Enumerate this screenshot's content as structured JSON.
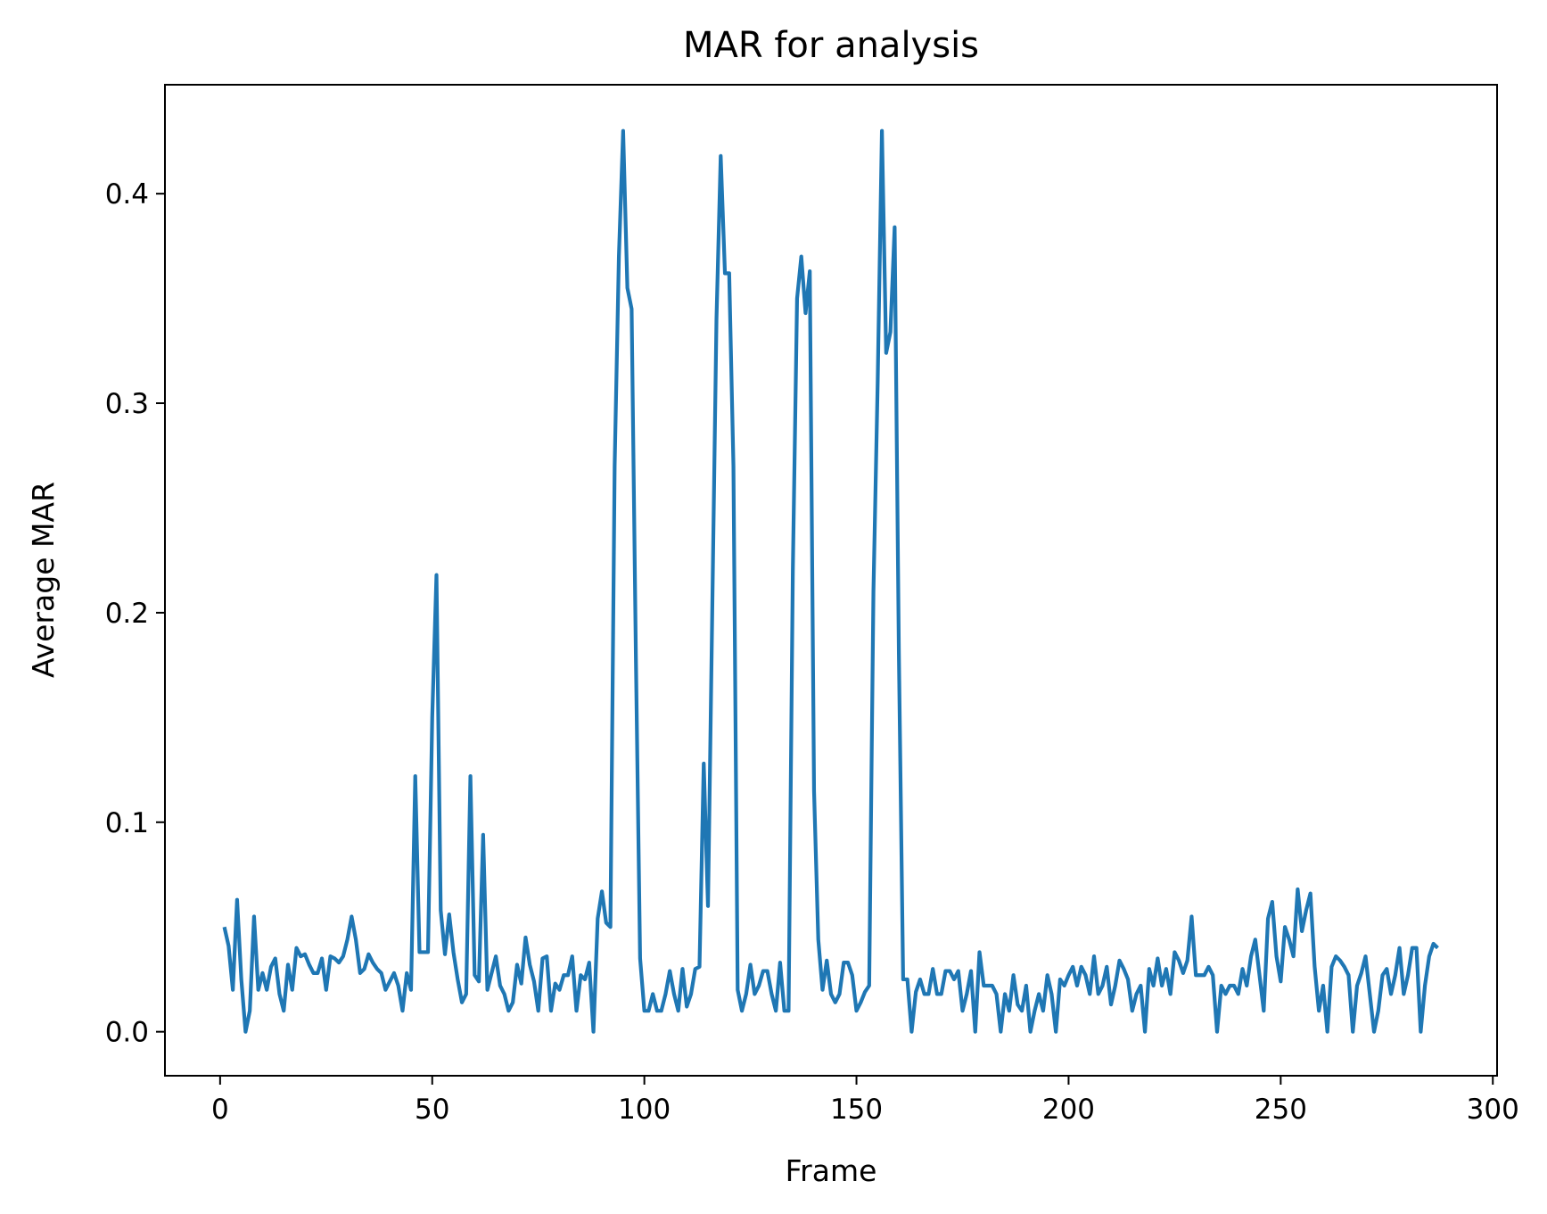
{
  "chart_data": {
    "type": "line",
    "title": "MAR for analysis",
    "xlabel": "Frame",
    "ylabel": "Average MAR",
    "xlim": [
      -13,
      301
    ],
    "ylim": [
      -0.021,
      0.452
    ],
    "xticks": [
      0,
      50,
      100,
      150,
      200,
      250,
      300
    ],
    "xtick_labels": [
      "0",
      "50",
      "100",
      "150",
      "200",
      "250",
      "300"
    ],
    "yticks": [
      0.0,
      0.1,
      0.2,
      0.3,
      0.4
    ],
    "ytick_labels": [
      "0.0",
      "0.1",
      "0.2",
      "0.3",
      "0.4"
    ],
    "grid": false,
    "legend": "none",
    "series": [
      {
        "color": "#1f77b4",
        "x": [
          1,
          2,
          3,
          4,
          5,
          6,
          7,
          8,
          9,
          10,
          11,
          12,
          13,
          14,
          15,
          16,
          17,
          18,
          19,
          20,
          21,
          22,
          23,
          24,
          25,
          26,
          27,
          28,
          29,
          30,
          31,
          32,
          33,
          34,
          35,
          36,
          37,
          38,
          39,
          40,
          41,
          42,
          43,
          44,
          45,
          46,
          47,
          48,
          49,
          50,
          51,
          52,
          53,
          54,
          55,
          56,
          57,
          58,
          59,
          60,
          61,
          62,
          63,
          64,
          65,
          66,
          67,
          68,
          69,
          70,
          71,
          72,
          73,
          74,
          75,
          76,
          77,
          78,
          79,
          80,
          81,
          82,
          83,
          84,
          85,
          86,
          87,
          88,
          89,
          90,
          91,
          92,
          93,
          94,
          95,
          96,
          97,
          98,
          99,
          100,
          101,
          102,
          103,
          104,
          105,
          106,
          107,
          108,
          109,
          110,
          111,
          112,
          113,
          114,
          115,
          116,
          117,
          118,
          119,
          120,
          121,
          122,
          123,
          124,
          125,
          126,
          127,
          128,
          129,
          130,
          131,
          132,
          133,
          134,
          135,
          136,
          137,
          138,
          139,
          140,
          141,
          142,
          143,
          144,
          145,
          146,
          147,
          148,
          149,
          150,
          151,
          152,
          153,
          154,
          155,
          156,
          157,
          158,
          159,
          160,
          161,
          162,
          163,
          164,
          165,
          166,
          167,
          168,
          169,
          170,
          171,
          172,
          173,
          174,
          175,
          176,
          177,
          178,
          179,
          180,
          181,
          182,
          183,
          184,
          185,
          186,
          187,
          188,
          189,
          190,
          191,
          192,
          193,
          194,
          195,
          196,
          197,
          198,
          199,
          200,
          201,
          202,
          203,
          204,
          205,
          206,
          207,
          208,
          209,
          210,
          211,
          212,
          213,
          214,
          215,
          216,
          217,
          218,
          219,
          220,
          221,
          222,
          223,
          224,
          225,
          226,
          227,
          228,
          229,
          230,
          231,
          232,
          233,
          234,
          235,
          236,
          237,
          238,
          239,
          240,
          241,
          242,
          243,
          244,
          245,
          246,
          247,
          248,
          249,
          250,
          251,
          252,
          253,
          254,
          255,
          256,
          257,
          258,
          259,
          260,
          261,
          262,
          263,
          264,
          265,
          266,
          267,
          268,
          269,
          270,
          271,
          272,
          273,
          274,
          275,
          276,
          277,
          278,
          279,
          280,
          281,
          282,
          283,
          284,
          285,
          286,
          287
        ],
        "y": [
          0.05,
          0.041,
          0.02,
          0.063,
          0.025,
          0.0,
          0.01,
          0.055,
          0.02,
          0.028,
          0.02,
          0.031,
          0.035,
          0.018,
          0.01,
          0.032,
          0.02,
          0.04,
          0.036,
          0.037,
          0.032,
          0.028,
          0.028,
          0.035,
          0.02,
          0.036,
          0.035,
          0.033,
          0.036,
          0.044,
          0.055,
          0.044,
          0.028,
          0.03,
          0.037,
          0.033,
          0.03,
          0.028,
          0.02,
          0.024,
          0.028,
          0.022,
          0.01,
          0.028,
          0.02,
          0.122,
          0.038,
          0.038,
          0.038,
          0.15,
          0.218,
          0.058,
          0.037,
          0.056,
          0.038,
          0.025,
          0.014,
          0.018,
          0.122,
          0.027,
          0.024,
          0.094,
          0.02,
          0.028,
          0.036,
          0.022,
          0.018,
          0.01,
          0.014,
          0.032,
          0.023,
          0.045,
          0.032,
          0.024,
          0.01,
          0.035,
          0.036,
          0.01,
          0.023,
          0.02,
          0.027,
          0.027,
          0.036,
          0.01,
          0.027,
          0.025,
          0.033,
          0.0,
          0.054,
          0.067,
          0.052,
          0.05,
          0.27,
          0.37,
          0.43,
          0.355,
          0.345,
          0.18,
          0.035,
          0.01,
          0.01,
          0.018,
          0.01,
          0.01,
          0.018,
          0.029,
          0.018,
          0.01,
          0.03,
          0.012,
          0.018,
          0.03,
          0.031,
          0.128,
          0.06,
          0.2,
          0.34,
          0.418,
          0.362,
          0.362,
          0.27,
          0.02,
          0.01,
          0.018,
          0.032,
          0.018,
          0.022,
          0.029,
          0.029,
          0.018,
          0.01,
          0.033,
          0.01,
          0.01,
          0.22,
          0.35,
          0.37,
          0.343,
          0.363,
          0.115,
          0.044,
          0.02,
          0.034,
          0.018,
          0.014,
          0.018,
          0.033,
          0.033,
          0.027,
          0.01,
          0.014,
          0.019,
          0.022,
          0.21,
          0.31,
          0.43,
          0.324,
          0.334,
          0.384,
          0.18,
          0.025,
          0.025,
          0.0,
          0.019,
          0.025,
          0.018,
          0.018,
          0.03,
          0.018,
          0.018,
          0.029,
          0.029,
          0.025,
          0.029,
          0.01,
          0.018,
          0.029,
          0.0,
          0.038,
          0.022,
          0.022,
          0.022,
          0.018,
          0.0,
          0.018,
          0.01,
          0.027,
          0.013,
          0.01,
          0.022,
          0.0,
          0.01,
          0.018,
          0.01,
          0.027,
          0.018,
          0.0,
          0.025,
          0.022,
          0.027,
          0.031,
          0.022,
          0.031,
          0.027,
          0.018,
          0.036,
          0.018,
          0.022,
          0.031,
          0.013,
          0.022,
          0.034,
          0.03,
          0.025,
          0.01,
          0.018,
          0.022,
          0.0,
          0.03,
          0.022,
          0.035,
          0.022,
          0.03,
          0.018,
          0.038,
          0.034,
          0.028,
          0.034,
          0.055,
          0.027,
          0.027,
          0.027,
          0.031,
          0.027,
          0.0,
          0.022,
          0.018,
          0.022,
          0.022,
          0.018,
          0.03,
          0.022,
          0.036,
          0.044,
          0.027,
          0.01,
          0.054,
          0.062,
          0.036,
          0.024,
          0.05,
          0.044,
          0.036,
          0.068,
          0.048,
          0.058,
          0.066,
          0.031,
          0.01,
          0.022,
          0.0,
          0.031,
          0.036,
          0.034,
          0.031,
          0.027,
          0.0,
          0.022,
          0.028,
          0.036,
          0.018,
          0.0,
          0.01,
          0.027,
          0.03,
          0.018,
          0.027,
          0.04,
          0.018,
          0.027,
          0.04,
          0.04,
          0.0,
          0.022,
          0.036,
          0.042,
          0.04
        ]
      }
    ]
  }
}
